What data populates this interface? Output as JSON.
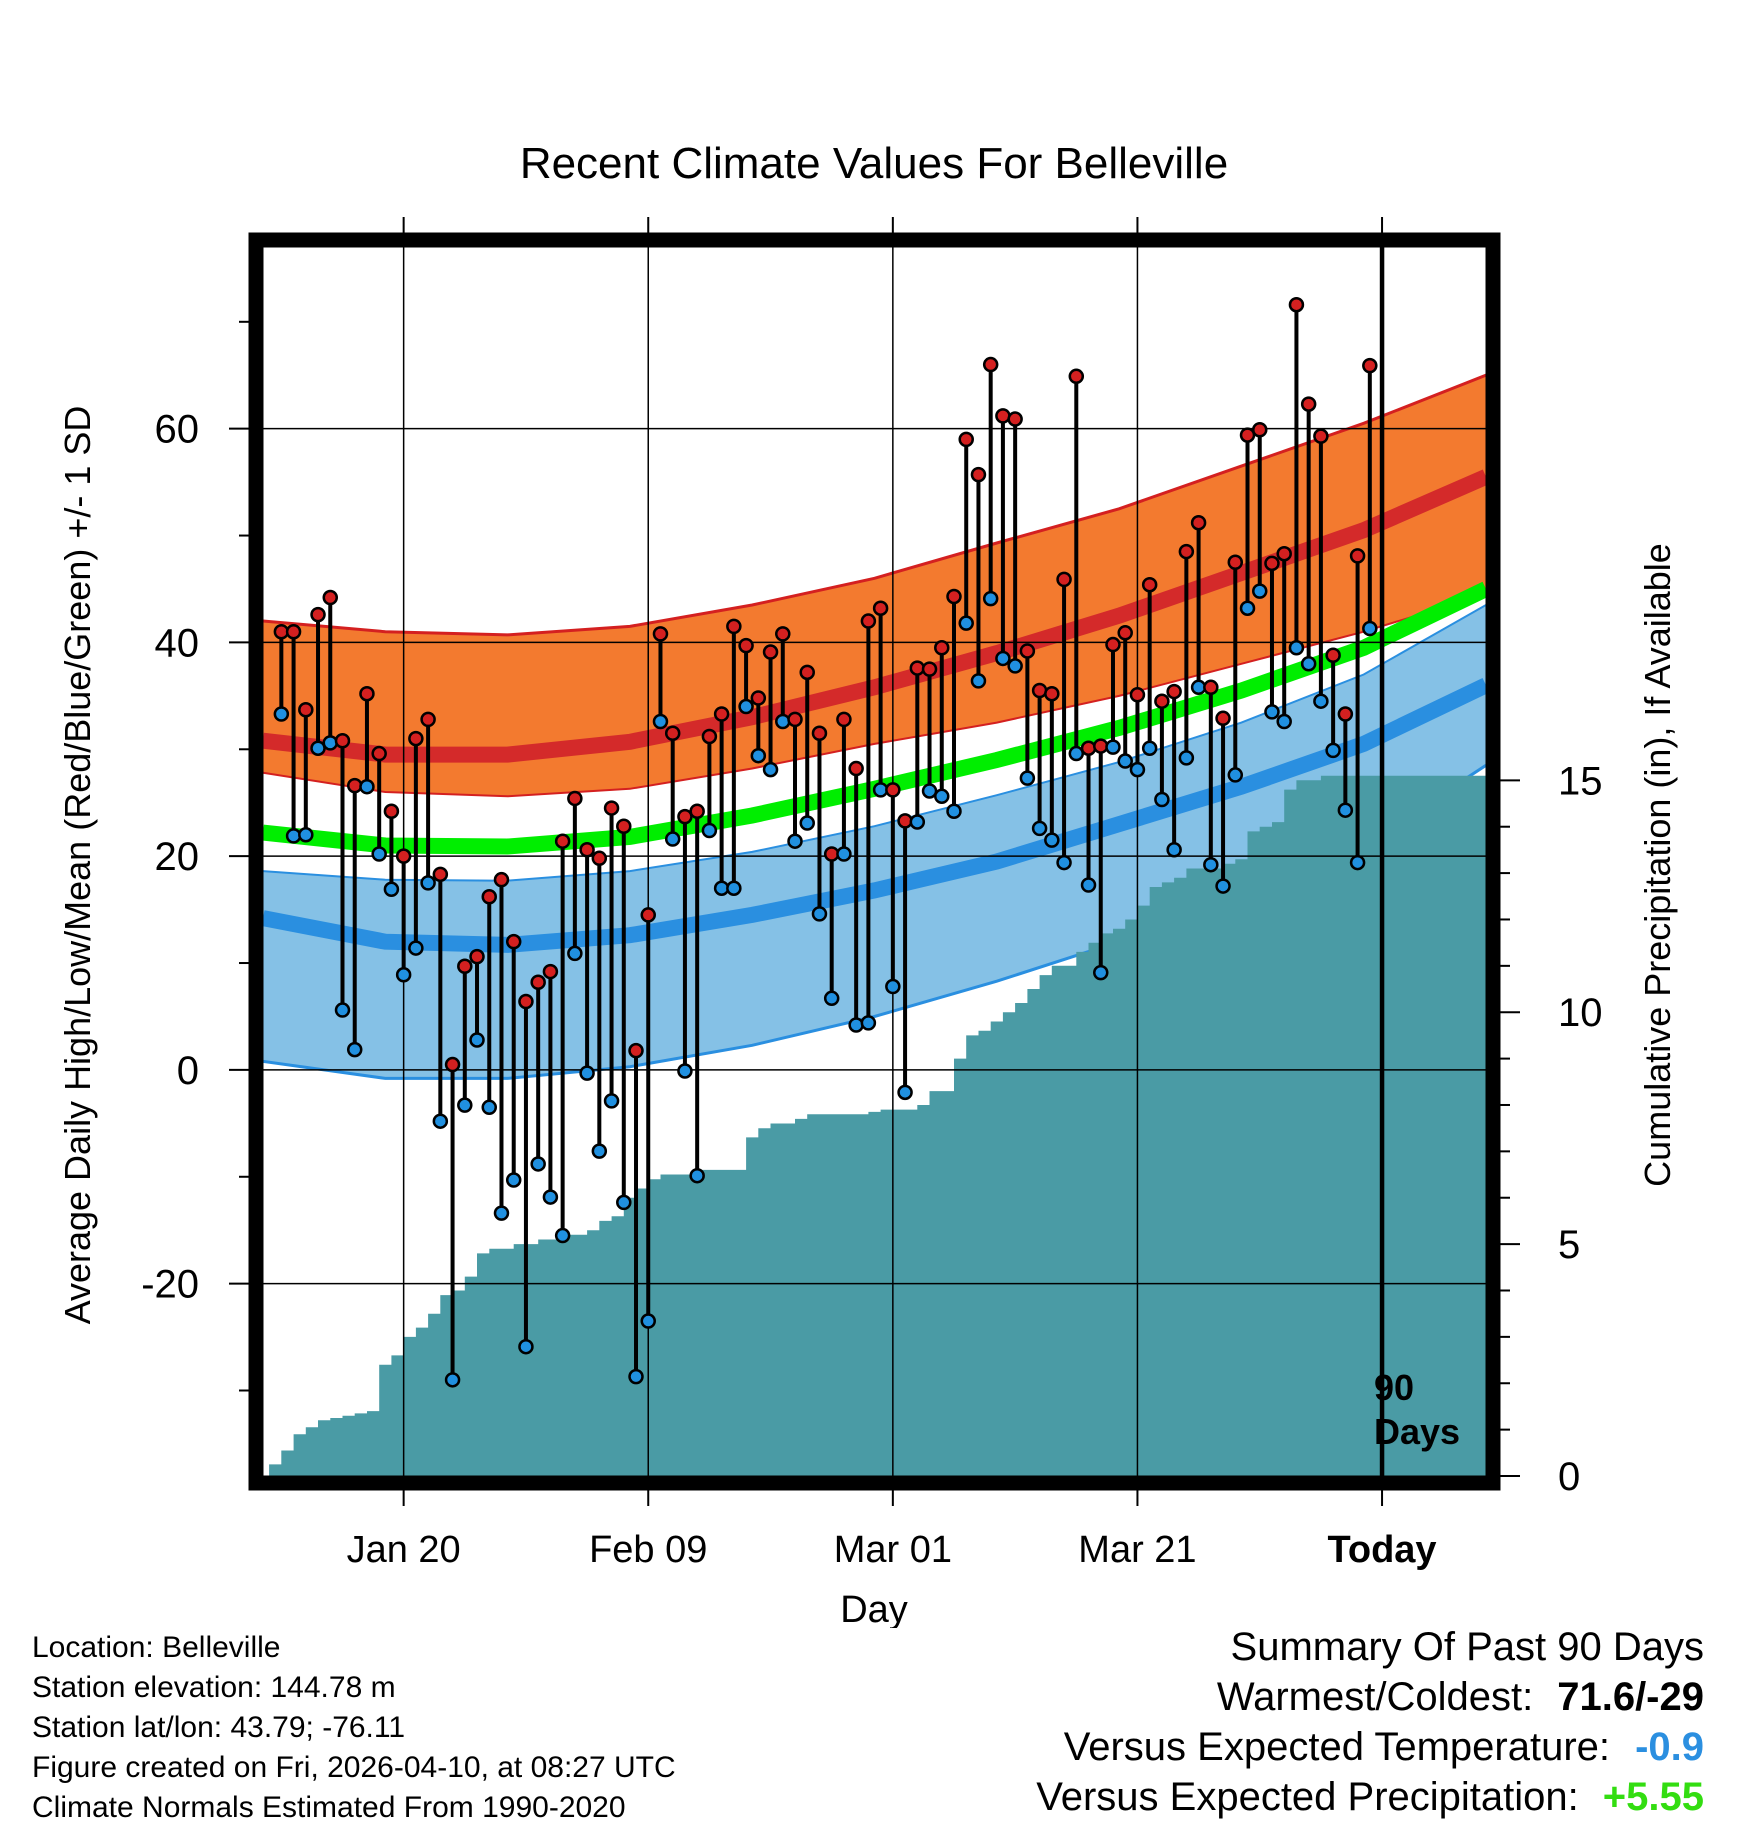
{
  "chart_data": {
    "type": "line",
    "title": "Recent Climate Values For Belleville",
    "xlabel": "Day",
    "ylabel": "Average Daily High/Low/Mean (Red/Blue/Green) +/- 1 SD",
    "y2label": "Cumulative Precipitation (in), If Available",
    "xlim": [
      0,
      100
    ],
    "ylim": [
      -38,
      77
    ],
    "y2lim": [
      0,
      26.5
    ],
    "x_ticks": [
      {
        "day": 11.5,
        "label": "Jan 20"
      },
      {
        "day": 31.5,
        "label": "Feb 09"
      },
      {
        "day": 51.5,
        "label": "Mar 01"
      },
      {
        "day": 71.5,
        "label": "Mar 21"
      },
      {
        "day": 91.5,
        "label": "Today"
      }
    ],
    "y_ticks": [
      -20,
      0,
      20,
      40,
      60
    ],
    "y2_ticks": [
      0,
      5,
      10,
      15
    ],
    "today_day": 91.5,
    "today_label_line1": "90",
    "today_label_line2": "Days",
    "normals_x": [
      0,
      10,
      20,
      30,
      40,
      50,
      60,
      70,
      80,
      90,
      100
    ],
    "normal_high": [
      30.8,
      29.5,
      29.5,
      30.7,
      33.0,
      35.8,
      39.0,
      42.5,
      46.5,
      50.5,
      55.5
    ],
    "normal_high_upper": [
      42.0,
      41.0,
      40.7,
      41.5,
      43.5,
      46.0,
      49.3,
      52.5,
      56.5,
      60.5,
      65.0
    ],
    "normal_high_lower": [
      27.8,
      26.0,
      25.6,
      26.3,
      28.2,
      30.5,
      32.5,
      35.0,
      38.0,
      41.0,
      44.5
    ],
    "normal_mean": [
      22.2,
      21.0,
      20.9,
      21.8,
      23.8,
      26.3,
      29.0,
      32.0,
      35.5,
      39.5,
      45.0
    ],
    "normal_low": [
      14.2,
      12.0,
      11.7,
      12.6,
      14.5,
      16.8,
      19.5,
      23.0,
      26.5,
      30.5,
      36.0
    ],
    "normal_low_upper": [
      18.6,
      17.8,
      17.7,
      18.6,
      20.4,
      22.8,
      25.7,
      28.8,
      32.5,
      37.0,
      43.5
    ],
    "normal_low_lower": [
      0.8,
      -0.8,
      -0.8,
      0.3,
      2.3,
      5.0,
      8.3,
      12.0,
      16.3,
      21.0,
      28.5
    ],
    "series": [
      {
        "name": "Daily High",
        "color": "#d42020",
        "values": [
          41,
          41,
          33.7,
          42.6,
          44.2,
          30.8,
          26.6,
          35.2,
          29.6,
          24.2,
          20,
          31,
          32.8,
          18.3,
          0.5,
          9.7,
          10.6,
          16.2,
          17.8,
          12,
          6.4,
          8.2,
          9.2,
          21.4,
          25.4,
          20.6,
          19.8,
          24.5,
          22.8,
          1.8,
          14.5,
          40.8,
          31.5,
          23.7,
          24.2,
          31.2,
          33.3,
          41.5,
          39.7,
          34.8,
          39.1,
          40.8,
          32.8,
          37.2,
          31.5,
          20.2,
          32.8,
          28.2,
          42,
          43.2,
          26.2,
          23.3,
          37.6,
          37.5,
          39.5,
          44.3,
          59,
          55.7,
          66,
          61.2,
          60.9,
          39.2,
          35.5,
          35.2,
          45.9,
          64.9,
          30.1,
          30.3,
          39.8,
          40.9,
          35.1,
          45.4,
          34.5,
          35.4,
          48.5,
          51.2,
          35.8,
          32.9,
          47.5,
          59.4,
          59.9,
          47.4,
          48.3,
          71.6,
          62.3,
          59.3,
          38.8,
          33.3,
          48.1,
          65.9
        ]
      },
      {
        "name": "Daily Low",
        "color": "#2090e0",
        "values": [
          33.3,
          21.9,
          22,
          30.1,
          30.6,
          5.6,
          1.9,
          26.5,
          20.2,
          16.9,
          8.9,
          11.4,
          17.5,
          -4.8,
          -29,
          -3.3,
          2.8,
          -3.5,
          -13.4,
          -10.3,
          -25.9,
          -8.8,
          -11.9,
          -15.5,
          10.9,
          -0.3,
          -7.6,
          -2.9,
          -12.4,
          -28.7,
          -23.5,
          32.6,
          21.6,
          -0.1,
          -9.9,
          22.4,
          17,
          17,
          34,
          29.4,
          28.1,
          32.6,
          21.4,
          23.1,
          14.6,
          6.7,
          20.2,
          4.2,
          4.4,
          26.2,
          7.8,
          -2.1,
          23.2,
          26.1,
          25.6,
          24.2,
          41.8,
          36.4,
          44.1,
          38.5,
          37.8,
          27.3,
          22.6,
          21.5,
          19.4,
          29.6,
          17.3,
          9.1,
          30.2,
          28.9,
          28.1,
          30.1,
          25.3,
          20.6,
          29.2,
          35.8,
          19.2,
          17.2,
          27.6,
          43.2,
          44.8,
          33.5,
          32.6,
          39.5,
          38,
          34.5,
          29.9,
          24.3,
          19.4,
          41.3
        ]
      },
      {
        "name": "Cumulative Precipitation",
        "color": "#4a9ba5",
        "values": [
          0,
          0.25,
          0.55,
          0.9,
          1.05,
          1.2,
          1.25,
          1.3,
          1.35,
          1.4,
          2.4,
          2.6,
          3.0,
          3.2,
          3.5,
          3.9,
          4.0,
          4.3,
          4.8,
          4.9,
          4.9,
          5.0,
          5.0,
          5.1,
          5.1,
          5.2,
          5.2,
          5.3,
          5.5,
          5.6,
          6.0,
          6.2,
          6.4,
          6.5,
          6.5,
          6.5,
          6.6,
          6.6,
          6.6,
          6.6,
          7.3,
          7.5,
          7.6,
          7.6,
          7.7,
          7.8,
          7.8,
          7.8,
          7.8,
          7.8,
          7.85,
          7.9,
          7.9,
          7.9,
          8.0,
          8.3,
          8.3,
          9.0,
          9.5,
          9.6,
          9.8,
          10.0,
          10.2,
          10.5,
          10.8,
          11.0,
          11.0,
          11.3,
          11.5,
          11.7,
          11.8,
          12.0,
          12.3,
          12.7,
          12.8,
          12.9,
          13.1,
          13.1,
          13.1,
          13.2,
          13.3,
          13.9,
          14.0,
          14.1,
          14.8,
          15.0,
          15.0,
          15.1,
          15.1,
          15.1,
          15.1,
          15.1,
          15.1,
          15.1,
          15.1,
          15.1,
          15.1,
          15.1,
          15.1,
          15.1,
          15.1
        ]
      }
    ]
  },
  "info": {
    "location": "Location: Belleville",
    "elevation": "Station elevation: 144.78 m",
    "latlon": "Station lat/lon: 43.79; -76.11",
    "created": "Figure created on Fri, 2026-04-10, at 08:27 UTC",
    "normals": "Climate Normals Estimated From 1990-2020"
  },
  "summary": {
    "heading": "Summary Of Past 90 Days",
    "warmest_label": "Warmest/Coldest:",
    "warmest_value": "71.6/-29",
    "temp_label": "Versus Expected Temperature:",
    "temp_value": "-0.9",
    "temp_color": "#2b8fe0",
    "precip_label": "Versus Expected Precipitation:",
    "precip_value": "+5.55",
    "precip_color": "#33dd11"
  }
}
